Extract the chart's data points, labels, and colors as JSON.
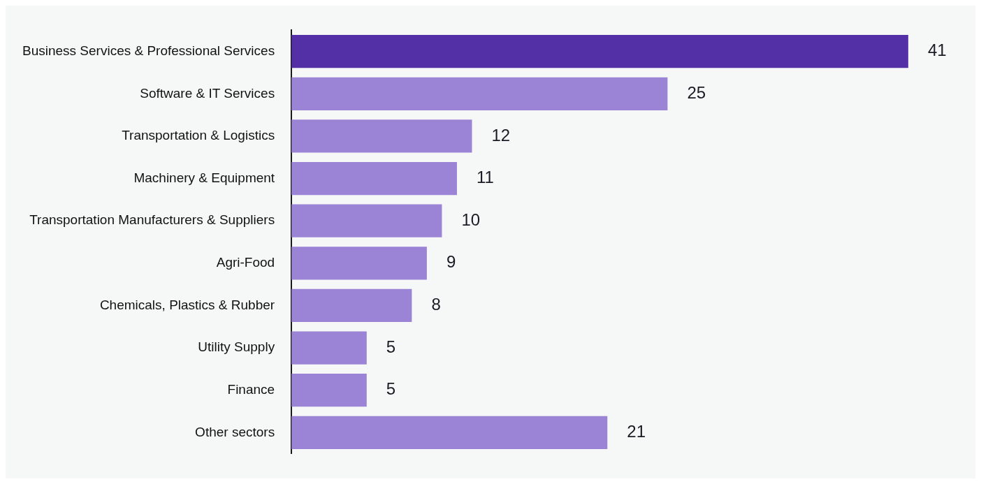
{
  "chart_data": {
    "type": "bar",
    "orientation": "horizontal",
    "categories": [
      "Business Services & Professional Services",
      "Software & IT Services",
      "Transportation & Logistics",
      "Machinery & Equipment",
      "Transportation Manufacturers & Suppliers",
      "Agri-Food",
      "Chemicals, Plastics & Rubber",
      "Utility Supply",
      "Finance",
      "Other sectors"
    ],
    "values": [
      41,
      25,
      12,
      11,
      10,
      9,
      8,
      5,
      5,
      21
    ],
    "colors": [
      "#5330a5",
      "#9b84d6",
      "#9b84d6",
      "#9b84d6",
      "#9b84d6",
      "#9b84d6",
      "#9b84d6",
      "#9b84d6",
      "#9b84d6",
      "#9b84d6"
    ],
    "data_labels": true,
    "grid": false,
    "legend": false
  }
}
